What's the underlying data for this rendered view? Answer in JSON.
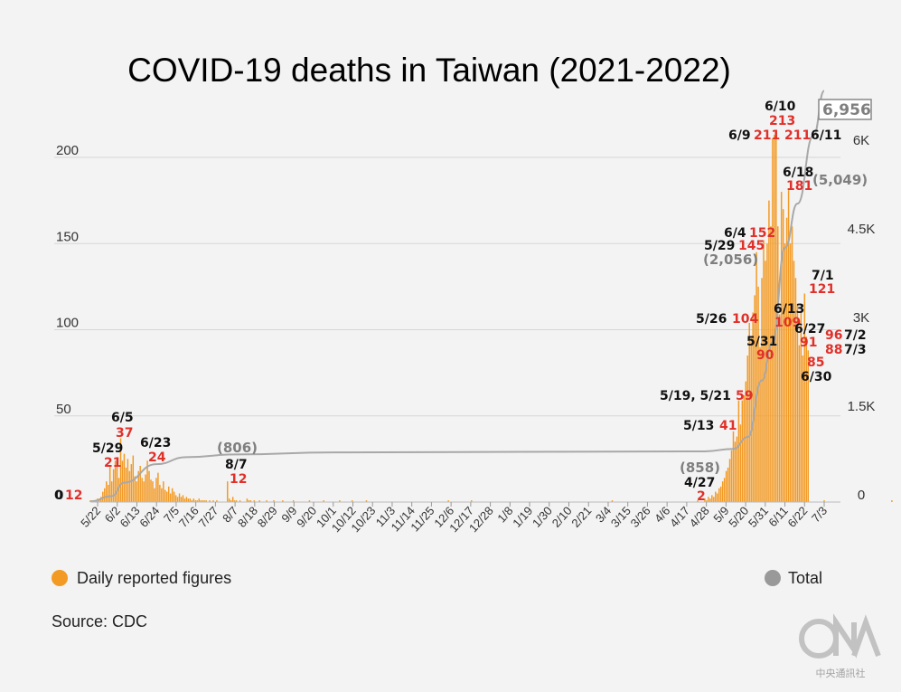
{
  "chart_data": {
    "type": "bar",
    "title": "COVID-19 deaths in Taiwan (2021-2022)",
    "source": "Source: CDC",
    "watermark": "中央通訊社",
    "colors": {
      "bar": "#f39a24",
      "line": "#a8a8a8",
      "red_label": "#e0302a"
    },
    "ylim": [
      0,
      213
    ],
    "y_ticks": [
      0,
      50,
      100,
      150,
      200
    ],
    "y2_ticks": [
      "0",
      "1.5K",
      "3K",
      "4.5K",
      "6K"
    ],
    "y2_lim": [
      0,
      7000
    ],
    "grid": true,
    "x_ticks": [
      "5/22",
      "6/2",
      "6/13",
      "6/24",
      "7/5",
      "7/16",
      "7/27",
      "8/7",
      "8/18",
      "8/29",
      "9/9",
      "9/20",
      "10/1",
      "10/12",
      "10/23",
      "11/3",
      "11/14",
      "11/25",
      "12/6",
      "12/17",
      "12/28",
      "1/8",
      "1/19",
      "1/30",
      "2/10",
      "2/21",
      "3/4",
      "3/15",
      "3/26",
      "4/6",
      "4/17",
      "4/28",
      "5/9",
      "5/20",
      "5/31",
      "6/11",
      "6/22",
      "7/3"
    ],
    "segments": [
      {
        "period": "2021",
        "start": "5/17",
        "values": [
          1,
          1,
          1,
          1,
          2,
          2,
          3,
          6,
          8,
          12,
          10,
          21,
          12,
          19,
          24,
          26,
          14,
          37,
          24,
          28,
          20,
          25,
          18,
          22,
          27,
          15,
          12,
          18,
          21,
          14,
          12,
          16,
          24,
          18,
          13,
          12,
          8,
          14,
          17,
          10,
          8,
          12,
          7,
          6,
          9,
          5,
          8,
          6,
          4,
          3,
          5,
          3,
          4,
          2,
          3,
          2,
          2,
          1,
          2,
          1,
          1,
          2,
          1,
          1,
          1,
          1,
          0,
          1,
          0,
          1,
          0,
          1,
          0,
          0,
          0,
          0,
          0,
          12,
          2,
          1,
          3,
          1,
          1,
          0,
          1,
          0,
          0,
          0,
          2,
          1,
          1,
          0,
          1,
          0,
          0,
          1,
          0,
          0,
          0,
          1,
          0,
          0,
          0,
          1,
          0,
          0,
          0,
          0,
          1,
          0,
          0,
          0,
          0,
          0,
          1,
          0,
          0,
          0,
          0,
          0,
          0,
          0,
          0,
          1,
          0,
          0,
          0,
          0,
          0,
          0,
          0,
          1,
          0,
          0,
          0,
          0,
          0,
          0,
          0,
          0,
          1,
          0,
          0,
          0,
          0,
          0,
          0,
          1,
          0,
          0,
          0,
          0,
          0,
          0,
          0,
          1,
          0,
          0,
          0,
          0,
          0,
          0,
          0,
          0,
          0,
          0,
          0,
          0,
          0,
          0,
          0,
          0,
          0,
          0,
          0,
          0,
          0,
          0,
          0,
          0,
          0,
          0,
          0,
          0,
          0,
          0,
          0,
          0,
          0,
          0,
          0,
          0,
          0,
          0,
          0,
          0,
          0,
          0,
          0,
          0,
          0,
          1,
          0,
          0,
          0,
          0,
          0,
          0,
          0,
          0,
          0,
          0,
          0,
          0,
          1,
          0,
          0,
          0,
          0,
          0,
          0,
          0,
          0,
          0,
          0,
          0,
          0,
          0,
          0,
          0,
          0,
          0,
          0,
          0,
          0,
          0,
          0,
          0,
          0,
          0,
          0,
          0,
          0,
          0,
          0,
          0,
          0,
          0,
          0,
          0,
          0,
          0,
          0,
          0,
          0,
          0,
          0,
          0,
          0,
          0,
          0,
          0,
          0,
          0,
          0,
          0,
          0,
          0,
          0,
          0,
          0,
          0,
          0,
          0,
          0,
          0,
          0,
          0,
          0,
          0,
          0,
          0,
          0,
          0,
          0,
          0,
          0,
          0,
          0,
          0,
          0,
          0,
          0,
          1,
          0,
          0,
          0,
          0,
          0,
          0,
          0,
          0,
          0,
          0,
          0,
          0,
          0,
          0,
          0,
          0,
          0,
          0,
          0,
          0,
          0,
          0,
          0,
          0,
          0,
          0,
          0,
          0,
          0,
          0,
          0,
          0,
          0,
          0,
          0,
          0,
          0,
          0,
          0,
          0,
          0,
          0,
          0,
          0,
          0,
          0,
          0,
          1,
          0,
          0,
          0,
          0,
          0,
          0,
          0,
          0,
          0,
          0,
          0,
          0,
          0,
          0,
          0,
          0,
          0,
          0,
          0,
          0,
          0,
          0,
          0,
          0,
          0,
          0,
          0,
          0,
          0,
          0,
          0,
          0,
          0,
          0,
          0,
          0,
          0,
          0,
          0,
          0,
          0,
          0,
          0,
          0,
          0,
          0,
          0,
          0,
          0,
          1,
          0,
          0,
          0,
          0,
          0,
          0,
          0,
          0,
          0,
          0,
          1,
          0,
          0,
          0,
          0,
          0,
          0,
          0,
          0,
          0,
          1,
          0,
          0,
          0,
          0,
          0,
          0,
          0,
          0,
          0,
          0,
          0,
          0,
          0,
          0,
          0,
          0,
          0,
          0,
          0,
          0,
          0,
          0,
          0,
          0,
          0,
          0,
          0,
          0,
          0,
          0,
          0,
          0,
          0,
          0,
          0,
          0,
          0,
          1,
          0,
          0,
          0,
          0,
          0,
          0,
          0,
          0,
          0,
          0
        ]
      },
      {
        "period": "2022",
        "start": "4/27",
        "values": [
          2,
          1,
          3,
          2,
          4,
          3,
          6,
          5,
          8,
          9,
          12,
          14,
          18,
          20,
          25,
          30,
          41,
          35,
          38,
          59,
          45,
          59,
          62,
          70,
          85,
          104,
          95,
          110,
          120,
          145,
          125,
          90,
          130,
          152,
          140,
          150,
          175,
          160,
          211,
          213,
          211,
          160,
          109,
          180,
          170,
          150,
          165,
          181,
          150,
          160,
          140,
          130,
          115,
          91,
          110,
          85,
          121,
          96,
          88
        ]
      }
    ],
    "total_series": {
      "name": "Total",
      "max": 6956,
      "points": [
        {
          "x": "2021-05-17",
          "y": 12
        },
        {
          "x": "2021-05-29",
          "y": 100
        },
        {
          "x": "2021-06-05",
          "y": 330
        },
        {
          "x": "2021-06-23",
          "y": 640
        },
        {
          "x": "2021-07-10",
          "y": 760
        },
        {
          "x": "2021-08-07",
          "y": 806
        },
        {
          "x": "2021-10-01",
          "y": 840
        },
        {
          "x": "2022-04-27",
          "y": 858
        },
        {
          "x": "2022-05-13",
          "y": 900
        },
        {
          "x": "2022-05-21",
          "y": 1100
        },
        {
          "x": "2022-05-29",
          "y": 2056
        },
        {
          "x": "2022-06-04",
          "y": 2700
        },
        {
          "x": "2022-06-11",
          "y": 4300
        },
        {
          "x": "2022-06-18",
          "y": 5049
        },
        {
          "x": "2022-06-27",
          "y": 6200
        },
        {
          "x": "2022-07-03",
          "y": 6956
        }
      ]
    },
    "annotations": [
      {
        "date": "5/22",
        "black": "0",
        "red": "12"
      },
      {
        "date": "5/29",
        "black": "5/29",
        "red": "21"
      },
      {
        "date": "6/5",
        "black": "6/5",
        "red": "37"
      },
      {
        "date": "6/23",
        "black": "6/23",
        "red": "24"
      },
      {
        "date": "8/7",
        "black": "8/7",
        "red": "12"
      },
      {
        "date": "4/27",
        "black": "4/27",
        "red": "2"
      },
      {
        "date": "5/13",
        "black": "5/13",
        "red": "41"
      },
      {
        "date": "5/19, 5/21",
        "black": "5/19, 5/21",
        "red": "59"
      },
      {
        "date": "5/26",
        "black": "5/26",
        "red": "104"
      },
      {
        "date": "5/29",
        "black": "5/29",
        "red": "145"
      },
      {
        "date": "5/31",
        "black": "5/31",
        "red": "90"
      },
      {
        "date": "6/4",
        "black": "6/4",
        "red": "152"
      },
      {
        "date": "6/9",
        "black": "6/9",
        "red": "211"
      },
      {
        "date": "6/10",
        "black": "6/10",
        "red": "213"
      },
      {
        "date": "6/11",
        "black": "6/11",
        "red": "211"
      },
      {
        "date": "6/13",
        "black": "6/13",
        "red": "109"
      },
      {
        "date": "6/18",
        "black": "6/18",
        "red": "181"
      },
      {
        "date": "6/27",
        "black": "6/27",
        "red": "91"
      },
      {
        "date": "6/30",
        "black": "6/30",
        "red": "85"
      },
      {
        "date": "7/1",
        "black": "7/1",
        "red": "121"
      },
      {
        "date": "7/2",
        "black": "7/2",
        "red": "96"
      },
      {
        "date": "7/3",
        "black": "7/3",
        "red": "88"
      }
    ],
    "total_annotations": [
      "(806)",
      "(858)",
      "(2,056)",
      "(5,049)",
      "6,956"
    ],
    "legend": {
      "position": "bottom",
      "items": [
        {
          "label": "Daily reported figures",
          "color": "#f39a24"
        },
        {
          "label": "Total",
          "color": "#999999"
        }
      ]
    }
  }
}
